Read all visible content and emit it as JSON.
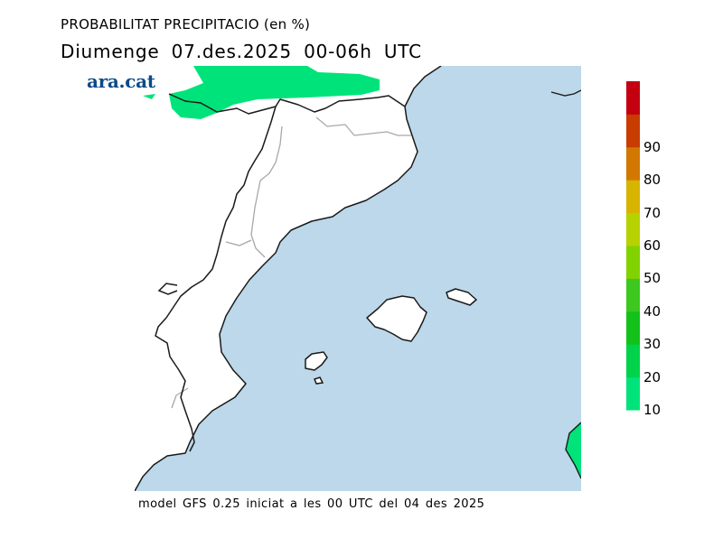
{
  "header": {
    "title": "PROBABILITAT PRECIPITACIO (en %)",
    "subtitle": "Diumenge  07.des.2025 00-06h UTC",
    "logo_text": "ara.cat"
  },
  "legend": {
    "levels": [
      {
        "value": "10",
        "color": "#00e37a"
      },
      {
        "value": "20",
        "color": "#00d24a"
      },
      {
        "value": "30",
        "color": "#12c21a"
      },
      {
        "value": "40",
        "color": "#3cc81e"
      },
      {
        "value": "50",
        "color": "#82d200"
      },
      {
        "value": "60",
        "color": "#b6d200"
      },
      {
        "value": "70",
        "color": "#d6b400"
      },
      {
        "value": "80",
        "color": "#d27800"
      },
      {
        "value": "90",
        "color": "#c83c00"
      },
      {
        "value": "",
        "color": "#c40010"
      }
    ]
  },
  "colors": {
    "sea": "#bcd8ea",
    "land": "#ffffff",
    "coast": "#1a1a1a",
    "border": "#a8a8a8"
  },
  "footer": {
    "text": "model GFS 0.25 iniciat a les 00 UTC del 04 des 2025"
  }
}
